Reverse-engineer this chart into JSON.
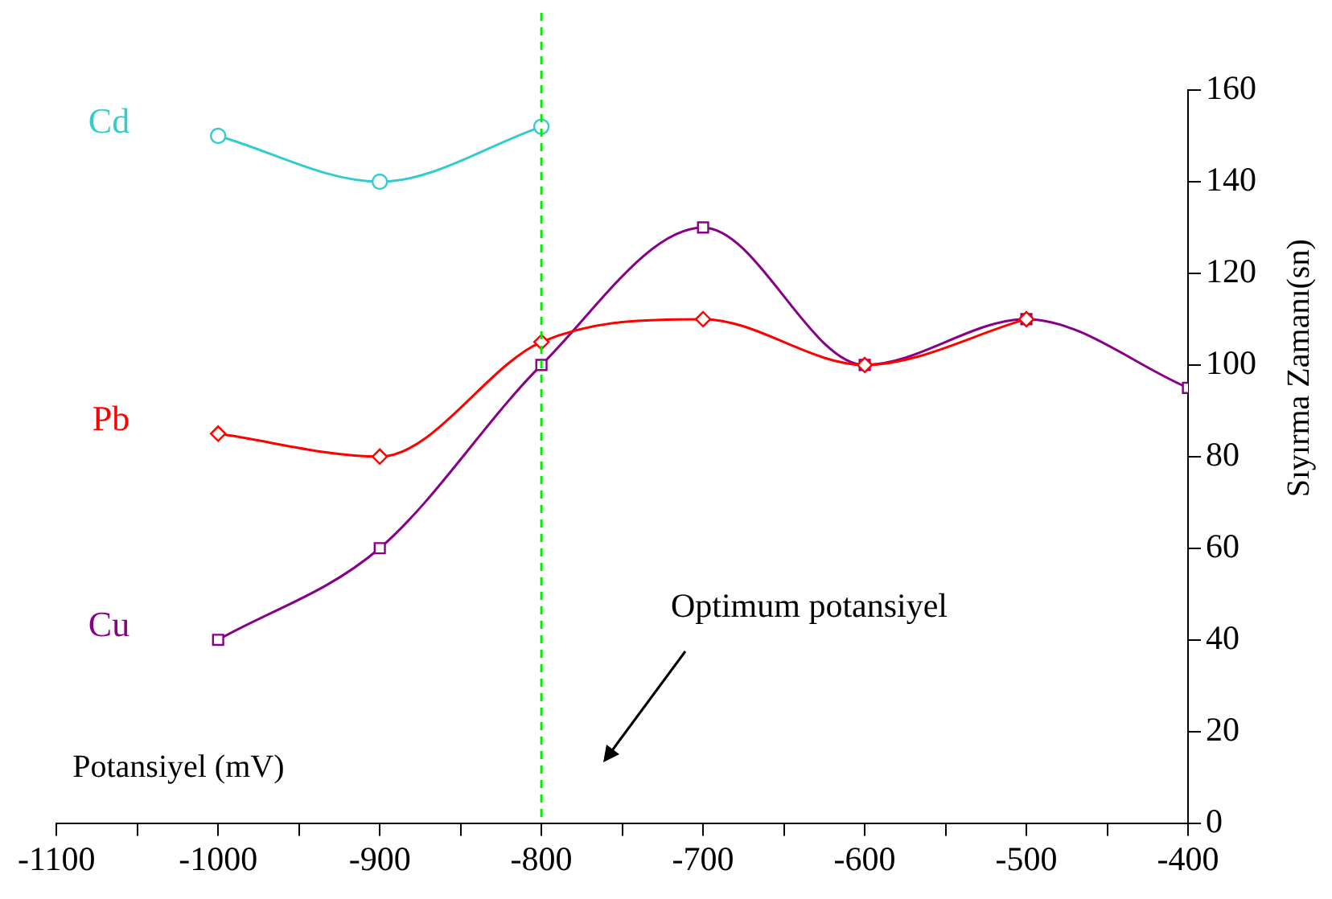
{
  "chart_data": {
    "type": "line",
    "xlabel": "Potansiyel (mV)",
    "ylabel": "Sıyırma Zamanı(sn)",
    "series": [
      {
        "name": "Cd",
        "color": "#33cccc",
        "marker": "circle",
        "x": [
          -1000,
          -900,
          -800
        ],
        "values": [
          150,
          140,
          152
        ]
      },
      {
        "name": "Pb",
        "color": "#ff0000",
        "marker": "diamond",
        "x": [
          -1000,
          -900,
          -800,
          -700,
          -600,
          -500
        ],
        "values": [
          85,
          80,
          105,
          110,
          100,
          110
        ]
      },
      {
        "name": "Cu",
        "color": "#880088",
        "marker": "square",
        "x": [
          -1000,
          -900,
          -800,
          -700,
          -600,
          -500,
          -400
        ],
        "values": [
          40,
          60,
          100,
          130,
          100,
          110,
          95
        ]
      }
    ],
    "xlim": [
      -1100,
      -400
    ],
    "xticks": [
      -1100,
      {
        "value": -1050,
        "label": null
      },
      -1000,
      {
        "value": -950,
        "label": null
      },
      -900,
      {
        "value": -850,
        "label": null
      },
      -800,
      {
        "value": -750,
        "label": null
      },
      -700,
      {
        "value": -650,
        "label": null
      },
      -600,
      {
        "value": -550,
        "label": null
      },
      -500,
      {
        "value": -450,
        "label": null
      },
      -400
    ],
    "ylim": [
      0,
      160
    ],
    "yticks": [
      0,
      20,
      40,
      60,
      80,
      100,
      120,
      140,
      160
    ],
    "ref_lines": [
      {
        "axis": "x",
        "value": -800,
        "color": "#00ee00",
        "line_style": "dashed"
      }
    ],
    "annotations": [
      "Optimum potansiyel"
    ],
    "grid": false,
    "legend": false
  }
}
